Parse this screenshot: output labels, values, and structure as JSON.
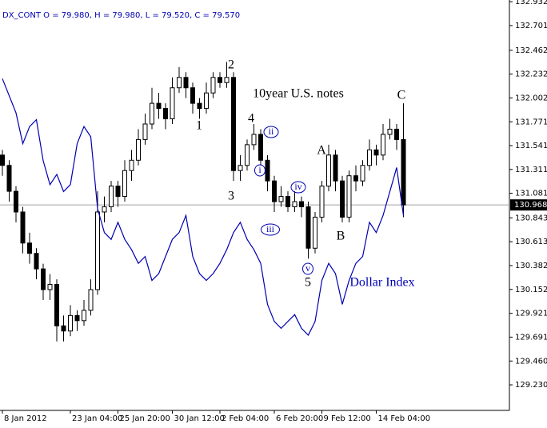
{
  "chart_data": {
    "type": "candlestick",
    "header": "DX_CONT O = 79.980, H = 79.980, L = 79.520, C = 79.570",
    "categories": [
      "8 Jan 2012",
      null,
      null,
      null,
      null,
      null,
      null,
      null,
      null,
      null,
      "23 Jan 04:00",
      null,
      null,
      null,
      null,
      null,
      null,
      "25 Jan 20:00",
      null,
      null,
      null,
      null,
      null,
      null,
      null,
      "30 Jan 12:00",
      null,
      null,
      null,
      null,
      null,
      null,
      "2 Feb 04:00",
      null,
      null,
      null,
      null,
      null,
      null,
      null,
      "6 Feb 20:00",
      null,
      null,
      null,
      null,
      null,
      null,
      "9 Feb 12:00",
      null,
      null,
      null,
      null,
      null,
      null,
      null,
      "14 Feb 04:00",
      null,
      null,
      null,
      null
    ],
    "series": [
      {
        "type": "candlestick",
        "color": "#000000",
        "up_fill": "#ffffff",
        "down_fill": "#000000",
        "open": [
          131.45,
          131.35,
          131.1,
          130.9,
          130.6,
          130.5,
          130.35,
          130.15,
          130.2,
          129.8,
          129.75,
          129.9,
          129.85,
          129.95,
          130.15,
          130.9,
          130.95,
          131.15,
          131.05,
          131.3,
          131.4,
          131.6,
          131.75,
          131.95,
          131.9,
          131.8,
          132.1,
          132.2,
          132.1,
          131.95,
          131.9,
          132.05,
          132.2,
          132.15,
          132.2,
          131.3,
          131.35,
          131.55,
          131.65,
          131.4,
          131.2,
          131.0,
          131.05,
          130.95,
          131.0,
          130.95,
          130.55,
          130.85,
          131.15,
          131.45,
          131.2,
          130.85,
          131.25,
          131.2,
          131.35,
          131.5,
          131.45,
          131.65,
          131.7,
          131.6
        ],
        "high": [
          131.5,
          131.4,
          131.15,
          130.95,
          130.7,
          130.55,
          130.4,
          130.3,
          130.25,
          129.9,
          130.0,
          129.95,
          130.05,
          130.25,
          131.1,
          131.05,
          131.2,
          131.2,
          131.4,
          131.5,
          131.7,
          131.85,
          132.1,
          132.05,
          131.95,
          132.2,
          132.3,
          132.25,
          132.15,
          132.0,
          132.15,
          132.25,
          132.25,
          132.35,
          132.25,
          131.45,
          131.6,
          131.75,
          131.7,
          131.45,
          131.25,
          131.15,
          131.1,
          131.1,
          131.05,
          131.0,
          130.9,
          131.2,
          131.55,
          131.5,
          131.25,
          131.3,
          131.35,
          131.4,
          131.6,
          131.55,
          131.75,
          131.8,
          131.75,
          131.95
        ],
        "low": [
          131.25,
          131.0,
          130.8,
          130.5,
          130.4,
          130.25,
          130.05,
          130.05,
          129.65,
          129.65,
          129.7,
          129.75,
          129.8,
          129.9,
          130.1,
          130.8,
          130.9,
          130.95,
          131.0,
          131.2,
          131.35,
          131.55,
          131.7,
          131.8,
          131.7,
          131.75,
          132.05,
          132.0,
          131.85,
          131.8,
          131.85,
          132.0,
          132.1,
          132.1,
          131.2,
          131.2,
          131.3,
          131.5,
          131.35,
          131.1,
          130.9,
          130.95,
          130.9,
          130.9,
          130.85,
          130.45,
          130.5,
          130.8,
          131.1,
          131.1,
          130.8,
          130.8,
          131.1,
          131.15,
          131.3,
          131.35,
          131.4,
          131.6,
          131.5,
          130.85
        ],
        "close": [
          131.35,
          131.1,
          130.9,
          130.6,
          130.5,
          130.35,
          130.15,
          130.2,
          129.8,
          129.75,
          129.9,
          129.85,
          129.95,
          130.15,
          130.9,
          130.95,
          131.15,
          131.05,
          131.3,
          131.4,
          131.6,
          131.75,
          131.95,
          131.9,
          131.8,
          132.1,
          132.2,
          132.1,
          131.95,
          131.9,
          132.05,
          132.2,
          132.15,
          132.2,
          131.3,
          131.35,
          131.55,
          131.65,
          131.4,
          131.2,
          131.0,
          131.05,
          130.95,
          131.0,
          130.95,
          130.55,
          130.85,
          131.15,
          131.45,
          131.2,
          130.85,
          131.25,
          131.2,
          131.35,
          131.5,
          131.45,
          131.65,
          131.7,
          131.6,
          130.968
        ]
      },
      {
        "type": "line",
        "color": "#0000b4",
        "axis": "y2",
        "values": [
          79.97,
          79.92,
          79.87,
          79.78,
          79.83,
          79.85,
          79.73,
          79.66,
          79.69,
          79.64,
          79.66,
          79.78,
          79.83,
          79.8,
          79.59,
          79.52,
          79.5,
          79.55,
          79.5,
          79.47,
          79.43,
          79.45,
          79.38,
          79.4,
          79.45,
          79.5,
          79.52,
          79.57,
          79.45,
          79.4,
          79.38,
          79.4,
          79.43,
          79.47,
          79.52,
          79.55,
          79.5,
          79.47,
          79.43,
          79.31,
          79.26,
          79.24,
          79.26,
          79.28,
          79.24,
          79.22,
          79.26,
          79.38,
          79.43,
          79.4,
          79.31,
          79.38,
          79.43,
          79.45,
          79.55,
          79.52,
          79.57,
          79.64,
          79.71,
          79.57
        ]
      }
    ],
    "ylim": [
      128.983,
      132.948
    ],
    "yticks": [
      132.932,
      132.701,
      132.462,
      132.232,
      132.002,
      131.771,
      131.541,
      131.311,
      131.081,
      130.843,
      130.613,
      130.382,
      130.152,
      129.921,
      129.691,
      {
        "value": 129.46,
        "label": "129.460"
      },
      {
        "value": 129.23,
        "label": "129.230"
      }
    ],
    "y2lim": [
      79.0,
      80.2
    ],
    "last_price_color": "#000000",
    "annotations": [
      {
        "text": "2",
        "color": "#000000"
      },
      {
        "text": "10year U.S. notes",
        "color": "#000000"
      },
      {
        "text": "1",
        "color": "#000000"
      },
      {
        "text": "4",
        "color": "#000000"
      },
      {
        "text": "ii",
        "color": "#0000b4",
        "circled": true
      },
      {
        "text": "A",
        "color": "#000000"
      },
      {
        "text": "C",
        "color": "#000000"
      },
      {
        "text": "i",
        "color": "#0000b4",
        "circled": true
      },
      {
        "text": "iv",
        "color": "#0000b4",
        "circled": true
      },
      {
        "text": "3",
        "color": "#000000"
      },
      {
        "text": "iii",
        "color": "#0000b4",
        "circled": true
      },
      {
        "text": "B",
        "color": "#000000"
      },
      {
        "text": "v",
        "color": "#0000b4",
        "circled": true
      },
      {
        "text": "5",
        "color": "#000000"
      },
      {
        "text": "Dollar Index",
        "color": "#0000b4"
      }
    ]
  }
}
